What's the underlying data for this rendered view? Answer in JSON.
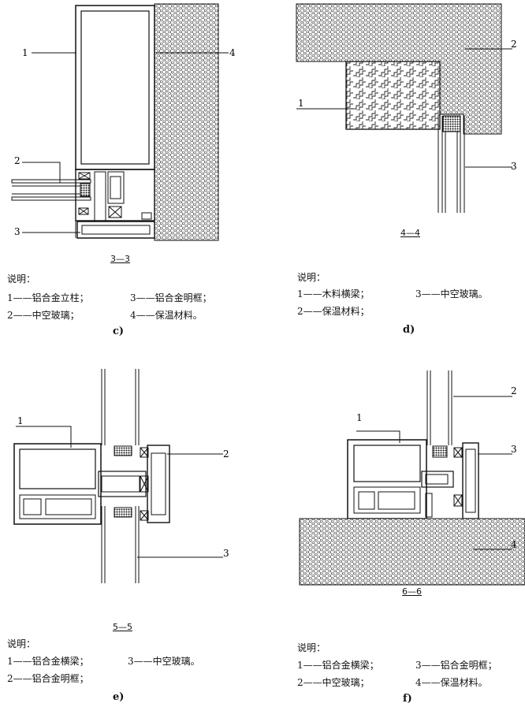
{
  "panels": [
    {
      "id": "c",
      "label": "c)",
      "section": "3—3",
      "callouts": [
        "1",
        "2",
        "3",
        "4"
      ],
      "legend_title": "说明：",
      "legend": [
        "1——铝合金立柱；",
        "3——铝合金明框；",
        "2——中空玻璃；",
        "4——保温材料。"
      ]
    },
    {
      "id": "d",
      "label": "d)",
      "section": "4—4",
      "callouts": [
        "1",
        "2",
        "3"
      ],
      "legend_title": "说明：",
      "legend": [
        "1——木料横梁；",
        "3——中空玻璃。",
        "2——保温材料；"
      ]
    },
    {
      "id": "e",
      "label": "e)",
      "section": "5—5",
      "callouts": [
        "1",
        "2",
        "3"
      ],
      "legend_title": "说明：",
      "legend": [
        "1——铝合金横梁；",
        "3——中空玻璃。",
        "2——铝合金明框；"
      ]
    },
    {
      "id": "f",
      "label": "f)",
      "section": "6—6",
      "callouts": [
        "1",
        "2",
        "3",
        "4"
      ],
      "legend_title": "说明：",
      "legend": [
        "1——铝合金横梁；",
        "3——铝合金明框；",
        "2——中空玻璃；",
        "4——保温材料。"
      ]
    }
  ]
}
